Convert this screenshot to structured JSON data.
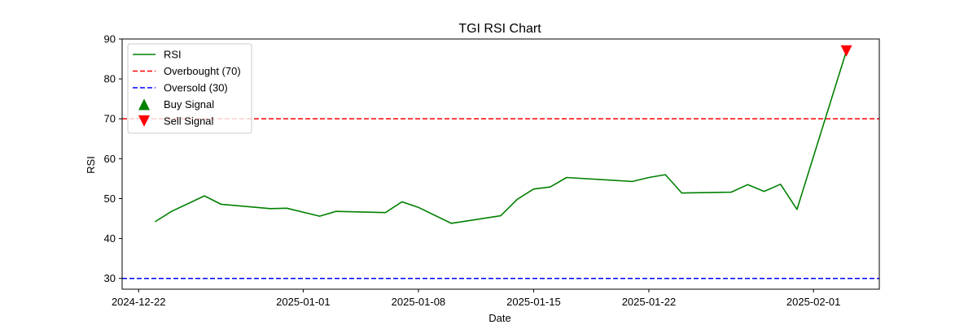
{
  "chart_data": {
    "type": "line",
    "title": "TGI RSI Chart",
    "xlabel": "Date",
    "ylabel": "RSI",
    "ylim": [
      27.3,
      90
    ],
    "xlim": [
      "2024-12-21",
      "2025-02-05"
    ],
    "y_ticks": [
      30,
      40,
      50,
      60,
      70,
      80,
      90
    ],
    "x_ticks": [
      "2024-12-22",
      "2025-01-01",
      "2025-01-08",
      "2025-01-15",
      "2025-01-22",
      "2025-02-01"
    ],
    "grid": false,
    "legend_position": "top-left",
    "series": [
      {
        "name": "RSI",
        "style": "solid",
        "color": "#008000",
        "x": [
          "2024-12-23",
          "2024-12-24",
          "2024-12-26",
          "2024-12-27",
          "2024-12-30",
          "2024-12-31",
          "2025-01-02",
          "2025-01-03",
          "2025-01-06",
          "2025-01-07",
          "2025-01-08",
          "2025-01-10",
          "2025-01-13",
          "2025-01-14",
          "2025-01-15",
          "2025-01-16",
          "2025-01-17",
          "2025-01-21",
          "2025-01-22",
          "2025-01-23",
          "2025-01-24",
          "2025-01-27",
          "2025-01-28",
          "2025-01-29",
          "2025-01-30",
          "2025-01-31",
          "2025-02-03"
        ],
        "y": [
          44.2,
          46.8,
          50.7,
          48.6,
          47.5,
          47.6,
          45.6,
          46.8,
          46.5,
          49.2,
          47.8,
          43.8,
          45.7,
          49.8,
          52.4,
          52.9,
          55.3,
          54.3,
          55.3,
          56.0,
          51.4,
          51.6,
          53.5,
          51.8,
          53.6,
          47.3,
          87.0
        ]
      },
      {
        "name": "Overbought (70)",
        "style": "dashed",
        "color": "#ff0000",
        "value": 70
      },
      {
        "name": "Oversold (30)",
        "style": "dashed",
        "color": "#0000ff",
        "value": 30
      },
      {
        "name": "Buy Signal",
        "marker": "triangle-up",
        "color": "#008000",
        "x": [],
        "y": []
      },
      {
        "name": "Sell Signal",
        "marker": "triangle-down",
        "color": "#ff0000",
        "x": [
          "2025-02-03"
        ],
        "y": [
          87.0
        ]
      }
    ]
  }
}
